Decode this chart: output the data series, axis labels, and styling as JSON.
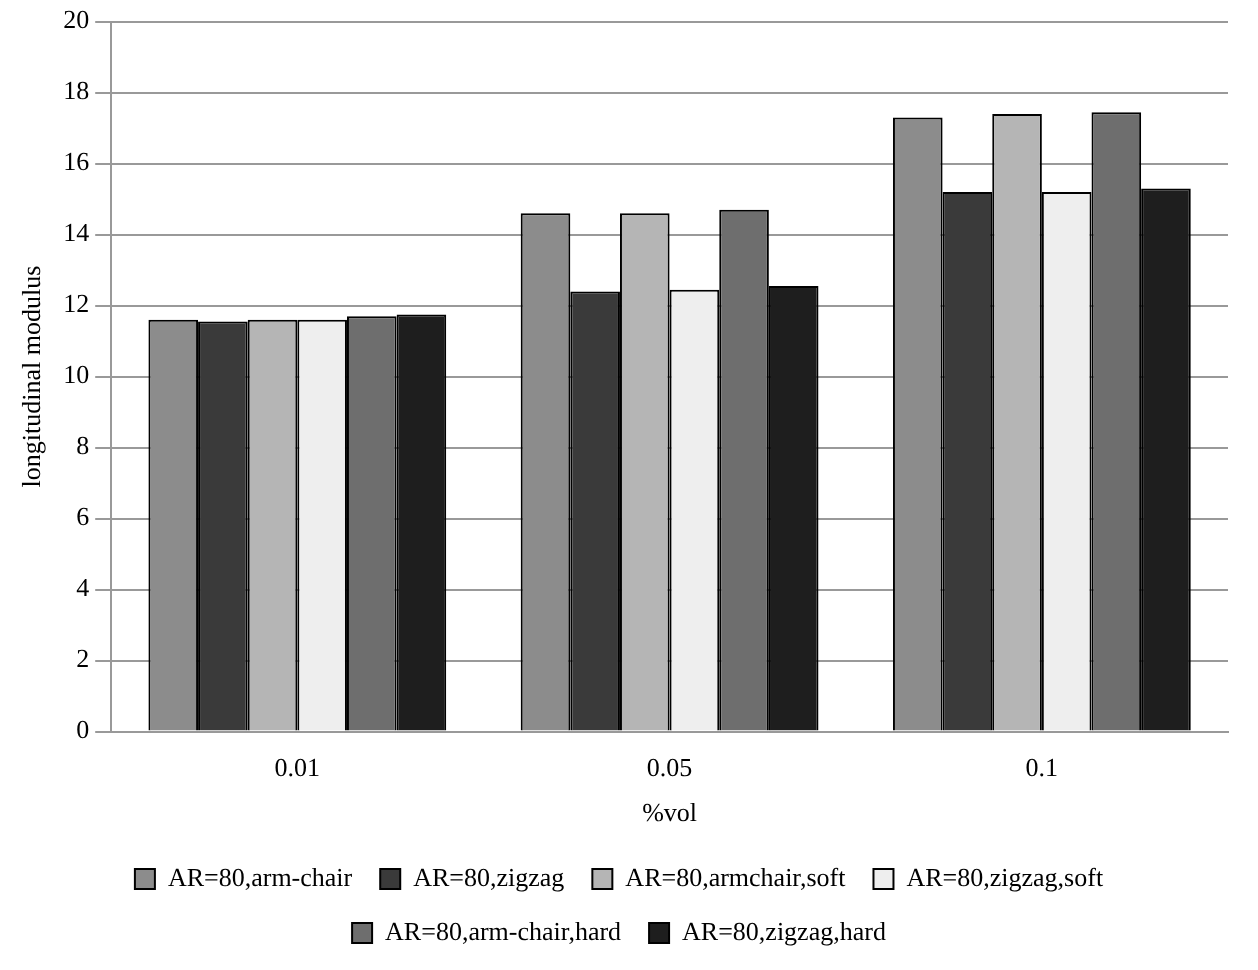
{
  "chart_data": {
    "type": "bar",
    "xlabel": "%vol",
    "ylabel": "longitudinal modulus",
    "categories": [
      "0.01",
      "0.05",
      "0.1"
    ],
    "series": [
      {
        "name": "AR=80,arm-chair",
        "color": "#8c8c8c",
        "values": [
          11.6,
          14.6,
          17.3
        ]
      },
      {
        "name": "AR=80,zigzag",
        "color": "#3a3a3a",
        "values": [
          11.55,
          12.4,
          15.2
        ]
      },
      {
        "name": "AR=80,armchair,soft",
        "color": "#b5b5b5",
        "values": [
          11.6,
          14.6,
          17.4
        ]
      },
      {
        "name": "AR=80,zigzag,soft",
        "color": "#eeeeee",
        "values": [
          11.6,
          12.45,
          15.2
        ]
      },
      {
        "name": "AR=80,arm-chair,hard",
        "color": "#6e6e6e",
        "values": [
          11.7,
          14.7,
          17.45
        ]
      },
      {
        "name": "AR=80,zigzag,hard",
        "color": "#1e1e1e",
        "values": [
          11.75,
          12.55,
          15.3
        ]
      }
    ],
    "ylim": [
      0,
      20
    ],
    "yticks": [
      0,
      2,
      4,
      6,
      8,
      10,
      12,
      14,
      16,
      18,
      20
    ],
    "grid": "y",
    "legend": "bottom"
  }
}
